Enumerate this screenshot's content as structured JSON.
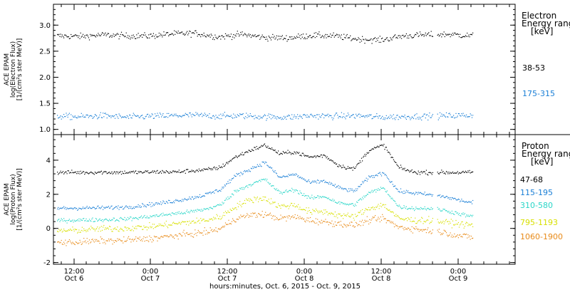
{
  "chart_data": [
    {
      "type": "scatter",
      "ylabel_lines": [
        "ACE EPAM",
        "log(Electron Flux)",
        "[1/(cm²s ster MeV)]"
      ],
      "ylim": [
        0.9,
        3.4
      ],
      "yticks": [
        1.0,
        1.5,
        2.0,
        2.5,
        3.0
      ],
      "ytick_labels": [
        "1.0",
        "1.5",
        "2.0",
        "2.5",
        "3.0"
      ],
      "legend_title": [
        "Electron",
        "Energy range",
        "[keV]"
      ],
      "series": [
        {
          "name": "38-53",
          "color": "#000000",
          "values": [
            2.8,
            2.79,
            2.82,
            2.8,
            2.8,
            2.84,
            2.85,
            2.78,
            2.83,
            2.77,
            2.76,
            2.81,
            2.8,
            2.74,
            2.72,
            2.8,
            2.82,
            2.83,
            2.8
          ]
        },
        {
          "name": "175-315",
          "color": "#1a7fd6",
          "values": [
            1.26,
            1.25,
            1.27,
            1.24,
            1.26,
            1.27,
            1.28,
            1.26,
            1.27,
            1.25,
            1.24,
            1.27,
            1.26,
            1.27,
            1.24,
            1.25,
            1.26,
            1.27,
            1.28
          ]
        }
      ]
    },
    {
      "type": "scatter",
      "ylabel_lines": [
        "ACE EPAM",
        "log(Proton Flux)",
        "[1/(cm²s ster MeV)]"
      ],
      "ylim": [
        -2.1,
        5.5
      ],
      "yticks": [
        -2,
        0,
        2,
        4
      ],
      "ytick_labels": [
        "-2",
        "0",
        "2",
        "4"
      ],
      "legend_title": [
        "Proton",
        "Energy range",
        "[keV]"
      ],
      "series": [
        {
          "name": "47-68",
          "color": "#000000",
          "values": [
            3.3,
            3.31,
            3.3,
            3.32,
            3.3,
            3.31,
            3.32,
            3.34,
            3.33,
            3.4,
            3.45,
            3.6,
            4.2,
            4.6,
            4.9,
            4.4,
            4.5,
            4.2,
            4.3,
            3.7,
            3.5,
            4.6,
            4.9,
            3.6,
            3.32,
            3.3,
            3.3,
            3.3,
            3.3
          ]
        },
        {
          "name": "115-195",
          "color": "#1a7fd6",
          "values": [
            1.2,
            1.21,
            1.22,
            1.23,
            1.25,
            1.3,
            1.4,
            1.5,
            1.65,
            1.8,
            2.0,
            2.3,
            3.1,
            3.5,
            3.9,
            3.0,
            3.2,
            2.7,
            2.8,
            2.4,
            2.2,
            3.0,
            3.3,
            2.2,
            2.1,
            2.0,
            1.9,
            1.7,
            1.5
          ]
        },
        {
          "name": "310-580",
          "color": "#2ad6c8",
          "values": [
            0.5,
            0.5,
            0.52,
            0.53,
            0.55,
            0.6,
            0.7,
            0.8,
            0.9,
            1.0,
            1.15,
            1.4,
            2.2,
            2.6,
            2.9,
            2.1,
            2.3,
            1.8,
            1.9,
            1.5,
            1.4,
            2.1,
            2.4,
            1.3,
            1.2,
            1.2,
            1.1,
            0.9,
            0.7
          ]
        },
        {
          "name": "795-1193",
          "color": "#d8e000",
          "values": [
            -0.1,
            -0.1,
            -0.05,
            0.0,
            0.0,
            0.05,
            0.1,
            0.2,
            0.3,
            0.4,
            0.5,
            0.7,
            1.3,
            1.7,
            1.8,
            1.3,
            1.4,
            1.0,
            1.0,
            0.8,
            0.7,
            1.2,
            1.4,
            0.6,
            0.5,
            0.5,
            0.4,
            0.3,
            0.2
          ]
        },
        {
          "name": "1060-1900",
          "color": "#e88a18",
          "values": [
            -0.8,
            -0.8,
            -0.75,
            -0.7,
            -0.7,
            -0.65,
            -0.6,
            -0.5,
            -0.4,
            -0.3,
            -0.2,
            0.0,
            0.6,
            0.8,
            0.85,
            0.6,
            0.7,
            0.5,
            0.4,
            0.3,
            0.2,
            0.5,
            0.6,
            0.1,
            0.0,
            -0.1,
            -0.2,
            -0.4,
            -0.5
          ]
        }
      ]
    }
  ],
  "x_axis": {
    "ticks": [
      {
        "time": "12:00",
        "date": "Oct 6"
      },
      {
        "time": "0:00",
        "date": "Oct 7"
      },
      {
        "time": "12:00",
        "date": "Oct 7"
      },
      {
        "time": "0:00",
        "date": "Oct 8"
      },
      {
        "time": "12:00",
        "date": "Oct 8"
      },
      {
        "time": "0:00",
        "date": "Oct 9"
      }
    ],
    "label": "hours:minutes, Oct.  6, 2015 - Oct.  9, 2015"
  }
}
